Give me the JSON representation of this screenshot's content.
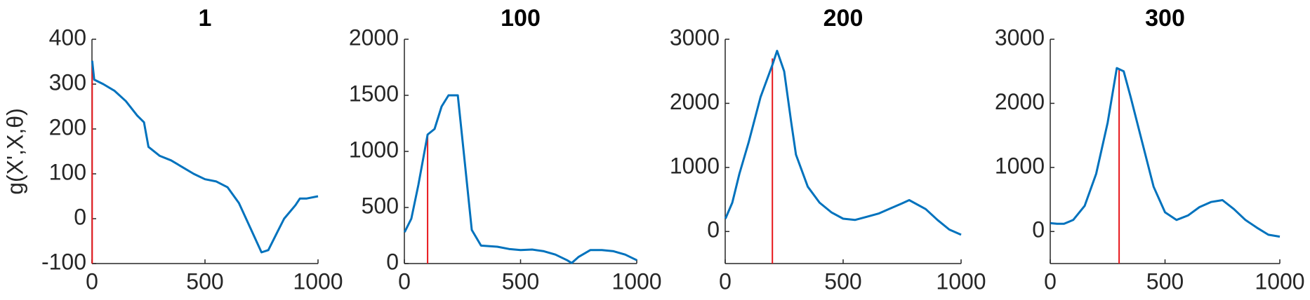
{
  "chart_data": [
    {
      "type": "line",
      "title": "1",
      "ylabel": "g(X',X,θ)",
      "color": "#0072bd",
      "vline": {
        "x": 1,
        "y": 352,
        "color": "#e8161b"
      },
      "xlim": [
        0,
        1000
      ],
      "xticks": [
        0,
        500,
        1000
      ],
      "ylim": [
        -100,
        400
      ],
      "yticks": [
        -100,
        0,
        100,
        200,
        300,
        400
      ],
      "x": [
        1,
        10,
        50,
        100,
        150,
        200,
        230,
        250,
        300,
        350,
        400,
        450,
        500,
        550,
        600,
        650,
        700,
        750,
        780,
        820,
        850,
        900,
        920,
        950,
        1000
      ],
      "values": [
        352,
        310,
        300,
        285,
        262,
        230,
        215,
        160,
        140,
        130,
        115,
        100,
        88,
        83,
        70,
        35,
        -20,
        -75,
        -70,
        -30,
        0,
        30,
        45,
        45,
        50
      ]
    },
    {
      "type": "line",
      "title": "100",
      "color": "#0072bd",
      "vline": {
        "x": 100,
        "y": 1150,
        "color": "#e8161b"
      },
      "xlim": [
        0,
        1000
      ],
      "xticks": [
        0,
        500,
        1000
      ],
      "ylim": [
        0,
        2000
      ],
      "yticks": [
        0,
        500,
        1000,
        1500,
        2000
      ],
      "x": [
        1,
        30,
        60,
        100,
        130,
        160,
        190,
        230,
        260,
        290,
        330,
        400,
        450,
        500,
        550,
        600,
        650,
        700,
        720,
        750,
        800,
        850,
        900,
        950,
        1000
      ],
      "values": [
        280,
        400,
        700,
        1150,
        1200,
        1400,
        1500,
        1500,
        900,
        300,
        160,
        150,
        130,
        120,
        125,
        110,
        80,
        30,
        5,
        60,
        120,
        120,
        110,
        80,
        30
      ]
    },
    {
      "type": "line",
      "title": "200",
      "color": "#0072bd",
      "vline": {
        "x": 200,
        "y": 2700,
        "color": "#e8161b"
      },
      "xlim": [
        0,
        1000
      ],
      "xticks": [
        0,
        500,
        1000
      ],
      "ylim": [
        -500,
        3000
      ],
      "yticks": [
        0,
        1000,
        2000,
        3000
      ],
      "x": [
        1,
        30,
        60,
        100,
        150,
        200,
        220,
        250,
        280,
        300,
        350,
        400,
        450,
        500,
        550,
        600,
        650,
        700,
        750,
        780,
        850,
        900,
        950,
        1000
      ],
      "values": [
        200,
        450,
        900,
        1400,
        2100,
        2600,
        2820,
        2500,
        1700,
        1200,
        700,
        450,
        300,
        200,
        180,
        230,
        280,
        360,
        440,
        490,
        350,
        180,
        30,
        -50
      ]
    },
    {
      "type": "line",
      "title": "300",
      "color": "#0072bd",
      "vline": {
        "x": 300,
        "y": 2520,
        "color": "#e8161b"
      },
      "xlim": [
        0,
        1000
      ],
      "xticks": [
        0,
        500,
        1000
      ],
      "ylim": [
        -500,
        3000
      ],
      "yticks": [
        0,
        1000,
        2000,
        3000
      ],
      "x": [
        1,
        30,
        60,
        100,
        150,
        200,
        250,
        290,
        320,
        350,
        400,
        450,
        500,
        550,
        600,
        650,
        700,
        750,
        800,
        850,
        900,
        950,
        1000
      ],
      "values": [
        130,
        120,
        120,
        180,
        400,
        900,
        1700,
        2550,
        2500,
        2100,
        1400,
        700,
        300,
        180,
        250,
        380,
        460,
        490,
        350,
        180,
        60,
        -50,
        -80
      ]
    }
  ]
}
